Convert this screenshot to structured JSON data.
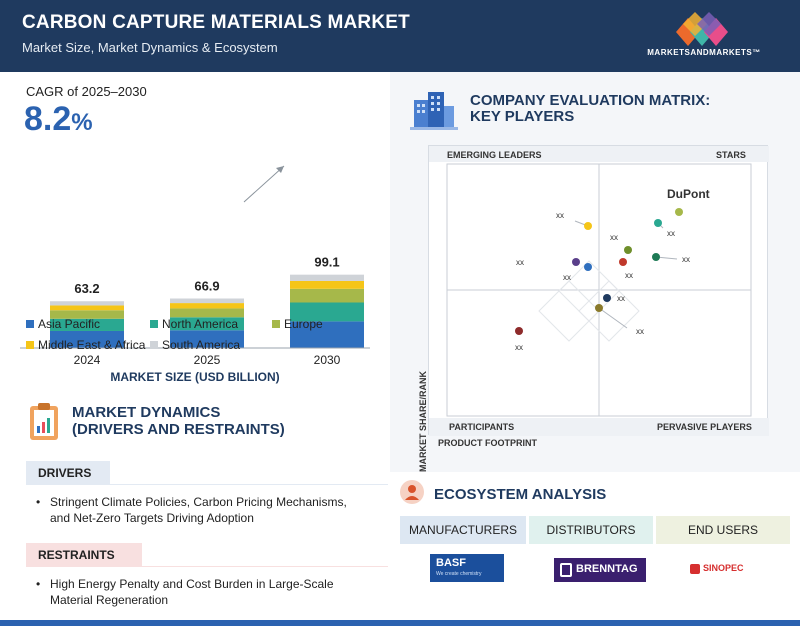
{
  "header": {
    "title": "CARBON CAPTURE MATERIALS MARKET",
    "subtitle": "Market Size, Market Dynamics & Ecosystem",
    "brand": "MARKETSANDMARKETS™"
  },
  "cagr": {
    "label": "CAGR of 2025–2030",
    "value": "8.2",
    "unit": "%"
  },
  "colors": {
    "asia_pacific": "#2f6fbe",
    "north_america": "#2aa891",
    "europe": "#a6b84a",
    "middle_east_africa": "#f5c518",
    "south_america": "#cfd3d8"
  },
  "chart_data": {
    "type": "bar",
    "title": "MARKET SIZE (USD BILLION)",
    "categories": [
      "2024",
      "2025",
      "2030"
    ],
    "totals": [
      "63.2",
      "66.9",
      "99.1"
    ],
    "series": [
      {
        "name": "Asia Pacific",
        "values": [
          23.0,
          24.0,
          36.0
        ]
      },
      {
        "name": "North America",
        "values": [
          16.5,
          17.5,
          25.5
        ]
      },
      {
        "name": "Europe",
        "values": [
          11.5,
          12.0,
          18.5
        ]
      },
      {
        "name": "Middle East & Africa",
        "values": [
          6.5,
          7.2,
          10.6
        ]
      },
      {
        "name": "South America",
        "values": [
          5.7,
          6.2,
          8.5
        ]
      }
    ],
    "stacked": true
  },
  "dynamics": {
    "title_line1": "MARKET DYNAMICS",
    "title_line2": "(DRIVERS AND RESTRAINTS)",
    "drivers_label": "DRIVERS",
    "driver_1a": "Stringent Climate Policies, Carbon Pricing Mechanisms,",
    "driver_1b": "and Net-Zero Targets Driving Adoption",
    "restraints_label": "RESTRAINTS",
    "restraint_1a": "High Energy Penalty and Cost Burden in Large-Scale",
    "restraint_1b": "Material Regeneration"
  },
  "matrix": {
    "title_line1": "COMPANY EVALUATION MATRIX:",
    "title_line2": "KEY PLAYERS",
    "q_emerging": "EMERGING LEADERS",
    "q_stars": "STARS",
    "q_participants": "PARTICIPANTS",
    "q_pervasive": "PERVASIVE PLAYERS",
    "y_axis": "MARKET SHARE/RANK",
    "x_axis": "PRODUCT FOOTPRINT",
    "leader": "DuPont",
    "placeholder": "xx"
  },
  "ecosystem": {
    "title": "ECOSYSTEM ANALYSIS",
    "tabs": [
      "MANUFACTURERS",
      "DISTRIBUTORS",
      "END USERS"
    ],
    "logos": [
      "BASF",
      "We create chemistry",
      "BRENNTAG",
      "SINOPEC"
    ]
  }
}
